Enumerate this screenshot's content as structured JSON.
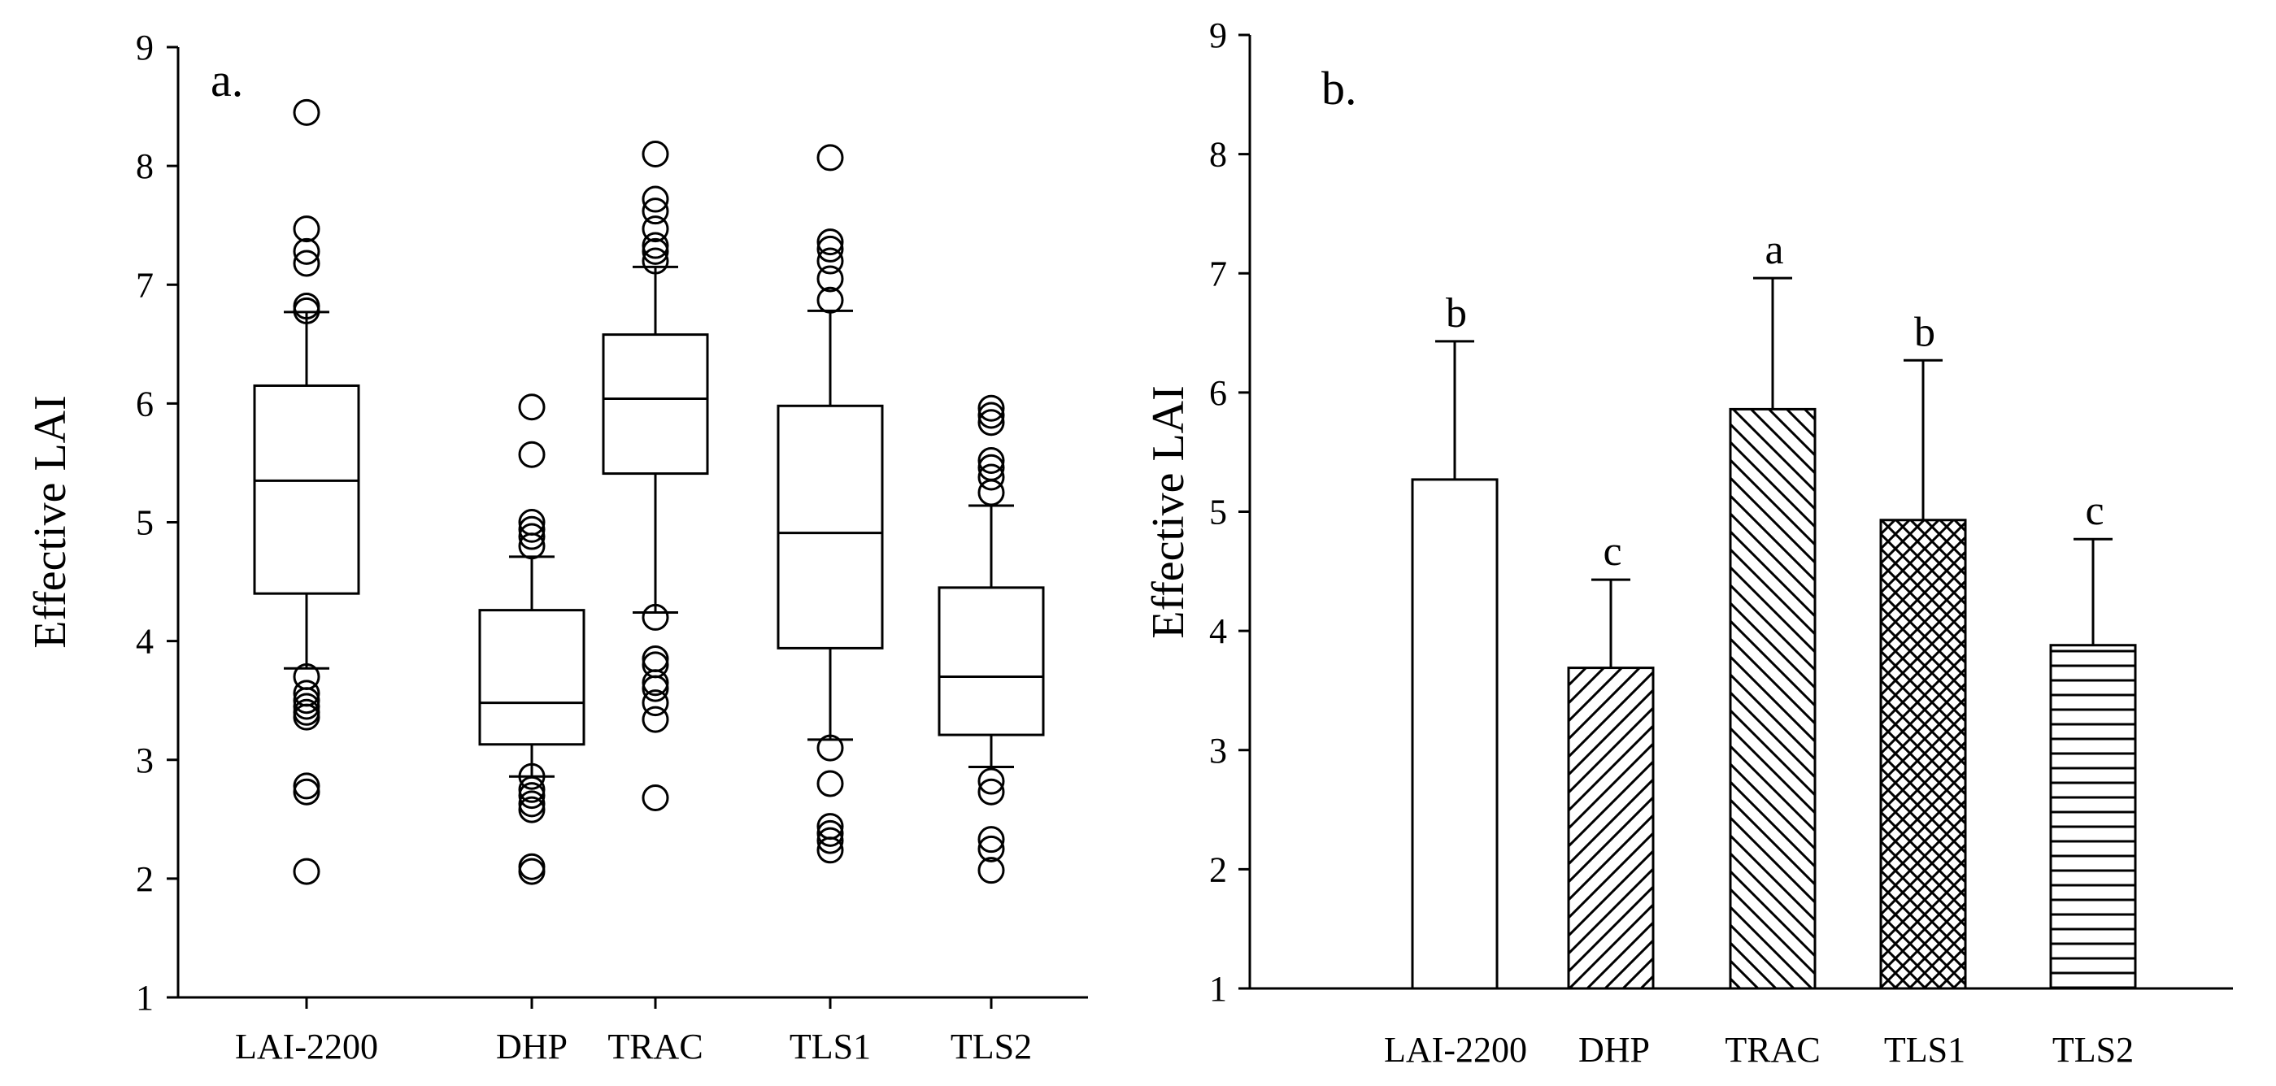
{
  "chart_data": [
    {
      "panel_label": "a.",
      "type": "boxplot",
      "ylabel": "Effective LAI",
      "ylim": [
        1,
        9
      ],
      "yticks": [
        "1",
        "2",
        "3",
        "4",
        "5",
        "6",
        "7",
        "8",
        "9"
      ],
      "categories": [
        "LAI-2200",
        "DHP",
        "TRAC",
        "TLS1",
        "TLS2"
      ],
      "boxes": [
        {
          "name": "LAI-2200",
          "q1": 4.4,
          "median": 5.35,
          "q3": 6.15,
          "whisker_low": 3.77,
          "whisker_high": 6.77,
          "outliers": [
            2.06,
            2.73,
            2.78,
            3.36,
            3.4,
            3.45,
            3.5,
            3.56,
            3.7,
            6.78,
            6.82,
            7.18,
            7.28,
            7.47,
            8.45
          ]
        },
        {
          "name": "DHP",
          "q1": 3.13,
          "median": 3.48,
          "q3": 4.26,
          "whisker_low": 2.86,
          "whisker_high": 4.71,
          "outliers": [
            2.06,
            2.1,
            2.58,
            2.63,
            2.7,
            2.75,
            2.86,
            4.8,
            4.88,
            4.94,
            5.0,
            5.57,
            5.97
          ]
        },
        {
          "name": "TRAC",
          "q1": 5.41,
          "median": 6.04,
          "q3": 6.58,
          "whisker_low": 4.24,
          "whisker_high": 7.15,
          "outliers": [
            2.68,
            3.34,
            3.48,
            3.6,
            3.65,
            3.8,
            3.85,
            4.2,
            7.2,
            7.28,
            7.33,
            7.47,
            7.62,
            7.72,
            8.1
          ]
        },
        {
          "name": "TLS1",
          "q1": 3.94,
          "median": 4.91,
          "q3": 5.98,
          "whisker_low": 3.17,
          "whisker_high": 6.78,
          "outliers": [
            2.24,
            2.32,
            2.38,
            2.44,
            2.8,
            3.1,
            6.87,
            7.05,
            7.2,
            7.3,
            7.36,
            8.07
          ]
        },
        {
          "name": "TLS2",
          "q1": 3.21,
          "median": 3.7,
          "q3": 4.45,
          "whisker_low": 2.94,
          "whisker_high": 5.14,
          "outliers": [
            2.07,
            2.25,
            2.33,
            2.73,
            2.82,
            5.25,
            5.38,
            5.46,
            5.52,
            5.84,
            5.9,
            5.96
          ]
        }
      ]
    },
    {
      "panel_label": "b.",
      "type": "bar",
      "ylabel": "Effective LAI",
      "ylim": [
        1,
        9
      ],
      "yticks": [
        "1",
        "2",
        "3",
        "4",
        "5",
        "6",
        "7",
        "8",
        "9"
      ],
      "categories": [
        "LAI-2200",
        "DHP",
        "TRAC",
        "TLS1",
        "TLS2"
      ],
      "values": [
        5.27,
        3.69,
        5.86,
        4.93,
        3.88
      ],
      "error_upper": [
        6.43,
        4.43,
        6.96,
        6.27,
        4.77
      ],
      "significance": [
        "b",
        "c",
        "a",
        "b",
        "c"
      ],
      "patterns": [
        "none",
        "diagonal-forward",
        "diagonal-back",
        "crosshatch",
        "horizontal"
      ]
    }
  ]
}
